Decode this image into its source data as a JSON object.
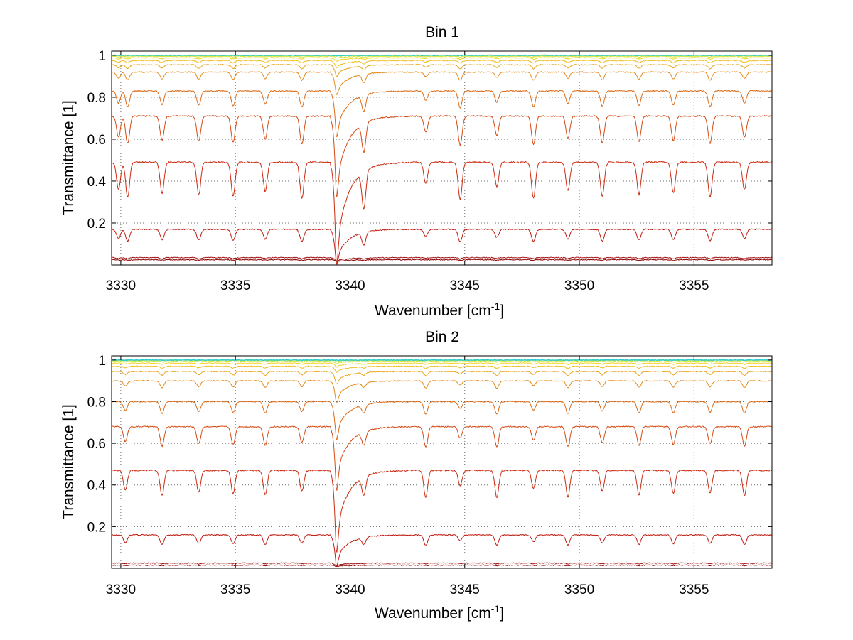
{
  "chart_data": [
    {
      "type": "line",
      "title": "Bin 1",
      "xlabel": "Wavenumber [cm",
      "xlabel_sup": "-1",
      "xlabel_end": "]",
      "ylabel": "Transmittance [1]",
      "xlim": [
        3329.6,
        3358.4
      ],
      "ylim": [
        0.0,
        1.02
      ],
      "xticks": [
        3330,
        3335,
        3340,
        3345,
        3350,
        3355
      ],
      "xtick_labels": [
        "3330",
        "3335",
        "3340",
        "3345",
        "3350",
        "3355"
      ],
      "yticks": [
        0.2,
        0.4,
        0.6,
        0.8,
        1.0
      ],
      "ytick_labels": [
        "0.2",
        "0.4",
        "0.6",
        "0.8",
        "1"
      ],
      "grid": true,
      "absorption_lines": [
        3329.9,
        3330.3,
        3331.8,
        3333.4,
        3334.9,
        3336.3,
        3337.9,
        3339.4,
        3340.6,
        3343.3,
        3344.8,
        3346.4,
        3348.0,
        3349.5,
        3351.0,
        3352.6,
        3354.1,
        3355.7,
        3357.2
      ],
      "series": [
        {
          "baseline": 0.025,
          "depth": 0.003,
          "color": "#8b0000"
        },
        {
          "baseline": 0.035,
          "depth": 0.006,
          "color": "#a01010"
        },
        {
          "baseline": 0.17,
          "depth": 0.06,
          "color": "#c01a10"
        },
        {
          "baseline": 0.49,
          "depth": 0.18,
          "color": "#cc2a10"
        },
        {
          "baseline": 0.71,
          "depth": 0.14,
          "color": "#d54a12"
        },
        {
          "baseline": 0.83,
          "depth": 0.08,
          "color": "#dd6a14"
        },
        {
          "baseline": 0.92,
          "depth": 0.04,
          "color": "#e48a18"
        },
        {
          "baseline": 0.955,
          "depth": 0.02,
          "color": "#e9a51e"
        },
        {
          "baseline": 0.975,
          "depth": 0.012,
          "color": "#eebe24"
        },
        {
          "baseline": 0.988,
          "depth": 0.006,
          "color": "#f2d42a"
        },
        {
          "baseline": 0.995,
          "depth": 0.003,
          "color": "#d8e636"
        },
        {
          "baseline": 0.999,
          "depth": 0.001,
          "color": "#9fe060"
        },
        {
          "baseline": 1.0,
          "depth": 0.0005,
          "color": "#4fd4a0"
        },
        {
          "baseline": 1.0,
          "depth": 0.0002,
          "color": "#1ec8d8"
        }
      ]
    },
    {
      "type": "line",
      "title": "Bin 2",
      "xlabel": "Wavenumber [cm",
      "xlabel_sup": "-1",
      "xlabel_end": "]",
      "ylabel": "Transmittance [1]",
      "xlim": [
        3329.6,
        3358.4
      ],
      "ylim": [
        0.0,
        1.02
      ],
      "xticks": [
        3330,
        3335,
        3340,
        3345,
        3350,
        3355
      ],
      "xtick_labels": [
        "3330",
        "3335",
        "3340",
        "3345",
        "3350",
        "3355"
      ],
      "yticks": [
        0.2,
        0.4,
        0.6,
        0.8,
        1.0
      ],
      "ytick_labels": [
        "0.2",
        "0.4",
        "0.6",
        "0.8",
        "1"
      ],
      "grid": true,
      "absorption_lines": [
        3330.2,
        3331.8,
        3333.4,
        3334.9,
        3336.3,
        3337.9,
        3339.4,
        3340.6,
        3343.3,
        3344.8,
        3346.4,
        3348.0,
        3349.5,
        3351.0,
        3352.6,
        3354.1,
        3355.7,
        3357.2
      ],
      "series": [
        {
          "baseline": 0.015,
          "depth": 0.002,
          "color": "#8b0000"
        },
        {
          "baseline": 0.025,
          "depth": 0.004,
          "color": "#a01010"
        },
        {
          "baseline": 0.16,
          "depth": 0.05,
          "color": "#c01a10"
        },
        {
          "baseline": 0.47,
          "depth": 0.13,
          "color": "#cc2a10"
        },
        {
          "baseline": 0.68,
          "depth": 0.1,
          "color": "#d54a12"
        },
        {
          "baseline": 0.8,
          "depth": 0.06,
          "color": "#dd6a14"
        },
        {
          "baseline": 0.9,
          "depth": 0.035,
          "color": "#e48a18"
        },
        {
          "baseline": 0.945,
          "depth": 0.02,
          "color": "#e9a51e"
        },
        {
          "baseline": 0.97,
          "depth": 0.01,
          "color": "#eebe24"
        },
        {
          "baseline": 0.985,
          "depth": 0.006,
          "color": "#f2d42a"
        },
        {
          "baseline": 0.993,
          "depth": 0.003,
          "color": "#d8e636"
        },
        {
          "baseline": 0.998,
          "depth": 0.0015,
          "color": "#9fe060"
        },
        {
          "baseline": 1.0,
          "depth": 0.0006,
          "color": "#4fd4a0"
        },
        {
          "baseline": 1.0,
          "depth": 0.0002,
          "color": "#1ec8d8"
        }
      ]
    }
  ]
}
